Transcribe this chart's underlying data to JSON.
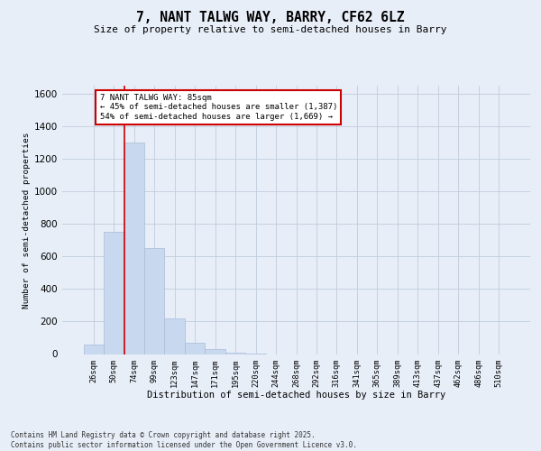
{
  "title": "7, NANT TALWG WAY, BARRY, CF62 6LZ",
  "subtitle": "Size of property relative to semi-detached houses in Barry",
  "xlabel": "Distribution of semi-detached houses by size in Barry",
  "ylabel": "Number of semi-detached properties",
  "categories": [
    "26sqm",
    "50sqm",
    "74sqm",
    "99sqm",
    "123sqm",
    "147sqm",
    "171sqm",
    "195sqm",
    "220sqm",
    "244sqm",
    "268sqm",
    "292sqm",
    "316sqm",
    "341sqm",
    "365sqm",
    "389sqm",
    "413sqm",
    "437sqm",
    "462sqm",
    "486sqm",
    "510sqm"
  ],
  "values": [
    60,
    750,
    1300,
    650,
    220,
    70,
    30,
    10,
    2,
    0,
    0,
    0,
    0,
    0,
    0,
    0,
    0,
    0,
    0,
    0,
    0
  ],
  "bar_color": "#c8d8ee",
  "bar_edge_color": "#a8bcd8",
  "grid_color": "#c0ccdc",
  "background_color": "#e8eef8",
  "property_bar_index": 2,
  "annotation_line1": "7 NANT TALWG WAY: 85sqm",
  "annotation_line2": "← 45% of semi-detached houses are smaller (1,387)",
  "annotation_line3": "54% of semi-detached houses are larger (1,669) →",
  "footer_line1": "Contains HM Land Registry data © Crown copyright and database right 2025.",
  "footer_line2": "Contains public sector information licensed under the Open Government Licence v3.0.",
  "ylim_max": 1650,
  "yticks": [
    0,
    200,
    400,
    600,
    800,
    1000,
    1200,
    1400,
    1600
  ],
  "red_color": "#cc0000",
  "white": "#ffffff"
}
